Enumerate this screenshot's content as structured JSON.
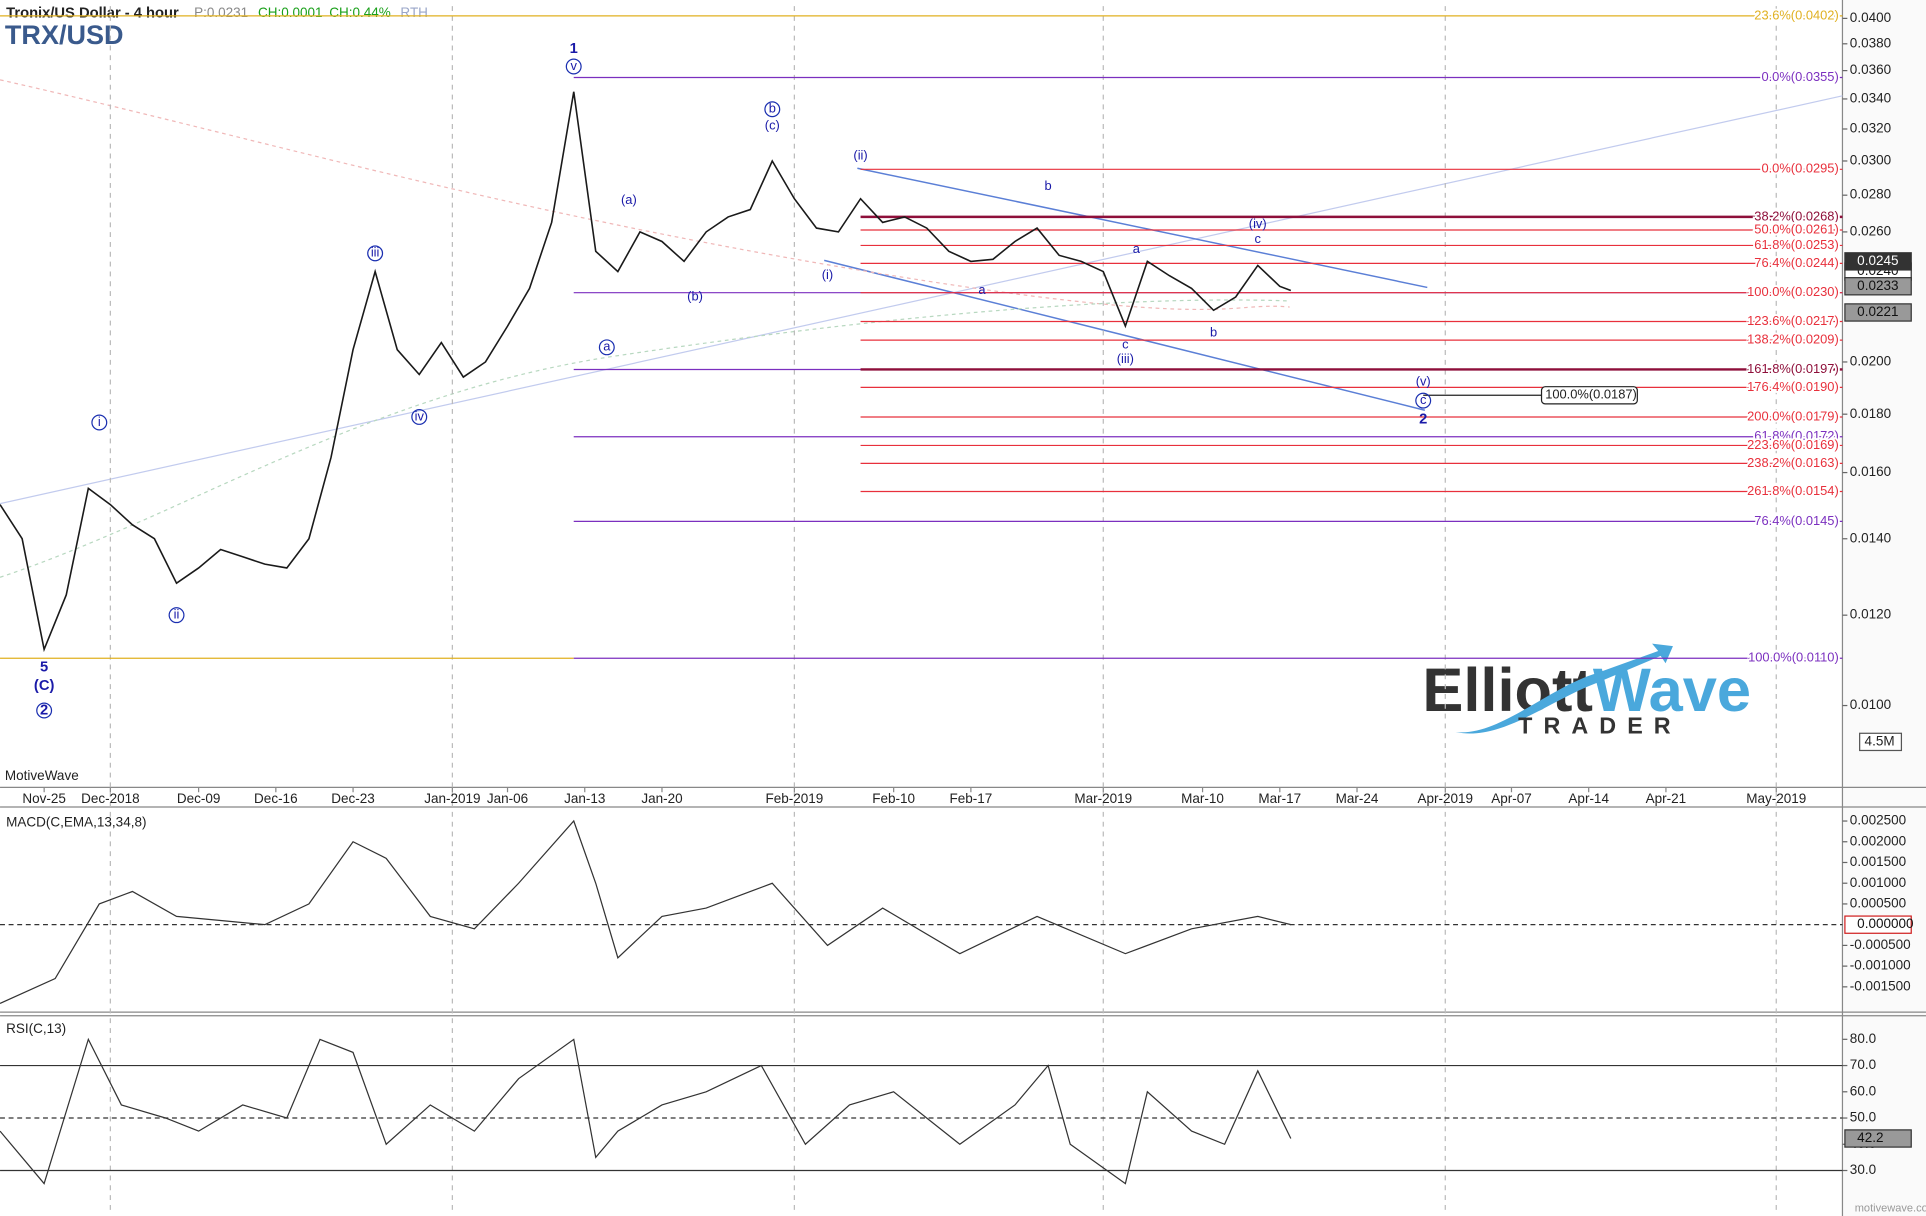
{
  "chart_data": [
    {
      "type": "line",
      "title": "Tronix/US Dollar - 4 hour",
      "symbol": "TRX/USD",
      "header_stats": [
        "P:0.0231",
        "CH:0.0001",
        "CH:0.44%",
        "RTH"
      ],
      "watermark": "MotiveWave",
      "volume_label": "4.5M",
      "log": true,
      "xlim": [
        "2018-11-21",
        "2019-05-07"
      ],
      "ylim": [
        0.0085,
        0.041
      ],
      "xticks": [
        {
          "value": "2018-11-25",
          "label": "Nov-25"
        },
        {
          "value": "2018-12-01",
          "label": "Dec-2018"
        },
        {
          "value": "2018-12-09",
          "label": "Dec-09"
        },
        {
          "value": "2018-12-16",
          "label": "Dec-16"
        },
        {
          "value": "2018-12-23",
          "label": "Dec-23"
        },
        {
          "value": "2019-01-01",
          "label": "Jan-2019"
        },
        {
          "value": "2019-01-06",
          "label": "Jan-06"
        },
        {
          "value": "2019-01-13",
          "label": "Jan-13"
        },
        {
          "value": "2019-01-20",
          "label": "Jan-20"
        },
        {
          "value": "2019-02-01",
          "label": "Feb-2019"
        },
        {
          "value": "2019-02-10",
          "label": "Feb-10"
        },
        {
          "value": "2019-02-17",
          "label": "Feb-17"
        },
        {
          "value": "2019-03-01",
          "label": "Mar-2019"
        },
        {
          "value": "2019-03-10",
          "label": "Mar-10"
        },
        {
          "value": "2019-03-17",
          "label": "Mar-17"
        },
        {
          "value": "2019-03-24",
          "label": "Mar-24"
        },
        {
          "value": "2019-04-01",
          "label": "Apr-2019"
        },
        {
          "value": "2019-04-07",
          "label": "Apr-07"
        },
        {
          "value": "2019-04-14",
          "label": "Apr-14"
        },
        {
          "value": "2019-04-21",
          "label": "Apr-21"
        },
        {
          "value": "2019-05-01",
          "label": "May-2019"
        }
      ],
      "yticks": [
        {
          "value": 0.01,
          "label": "0.0100"
        },
        {
          "value": 0.012,
          "label": "0.0120"
        },
        {
          "value": 0.014,
          "label": "0.0140"
        },
        {
          "value": 0.016,
          "label": "0.0160"
        },
        {
          "value": 0.018,
          "label": "0.0180"
        },
        {
          "value": 0.02,
          "label": "0.0200"
        },
        {
          "value": 0.026,
          "label": "0.0260"
        },
        {
          "value": 0.028,
          "label": "0.0280"
        },
        {
          "value": 0.03,
          "label": "0.0300"
        },
        {
          "value": 0.032,
          "label": "0.0320"
        },
        {
          "value": 0.034,
          "label": "0.0340"
        },
        {
          "value": 0.036,
          "label": "0.0360"
        },
        {
          "value": 0.038,
          "label": "0.0380"
        },
        {
          "value": 0.04,
          "label": "0.0400"
        }
      ],
      "series": [
        {
          "color": "#1a1a1a",
          "x": [
            "2018-11-21",
            "2018-11-23",
            "2018-11-25",
            "2018-11-27",
            "2018-11-29",
            "2018-12-01",
            "2018-12-03",
            "2018-12-05",
            "2018-12-07",
            "2018-12-09",
            "2018-12-11",
            "2018-12-13",
            "2018-12-15",
            "2018-12-17",
            "2018-12-19",
            "2018-12-21",
            "2018-12-23",
            "2018-12-25",
            "2018-12-27",
            "2018-12-29",
            "2018-12-31",
            "2019-01-02",
            "2019-01-04",
            "2019-01-06",
            "2019-01-08",
            "2019-01-10",
            "2019-01-12",
            "2019-01-14",
            "2019-01-16",
            "2019-01-18",
            "2019-01-20",
            "2019-01-22",
            "2019-01-24",
            "2019-01-26",
            "2019-01-28",
            "2019-01-30",
            "2019-02-01",
            "2019-02-03",
            "2019-02-05",
            "2019-02-07",
            "2019-02-09",
            "2019-02-11",
            "2019-02-13",
            "2019-02-15",
            "2019-02-17",
            "2019-02-19",
            "2019-02-21",
            "2019-02-23",
            "2019-02-25",
            "2019-02-27",
            "2019-03-01",
            "2019-03-03",
            "2019-03-05",
            "2019-03-07",
            "2019-03-09",
            "2019-03-11",
            "2019-03-13",
            "2019-03-15",
            "2019-03-17",
            "2019-03-18"
          ],
          "values": [
            0.015,
            0.014,
            0.0112,
            0.0125,
            0.0155,
            0.015,
            0.0144,
            0.014,
            0.0128,
            0.0132,
            0.0137,
            0.0135,
            0.0133,
            0.0132,
            0.014,
            0.0165,
            0.0205,
            0.024,
            0.0205,
            0.0195,
            0.0208,
            0.0194,
            0.02,
            0.0215,
            0.0232,
            0.0265,
            0.0345,
            0.025,
            0.024,
            0.026,
            0.0255,
            0.0245,
            0.026,
            0.0268,
            0.0272,
            0.03,
            0.0278,
            0.0262,
            0.026,
            0.0278,
            0.0265,
            0.0268,
            0.0262,
            0.025,
            0.0245,
            0.0246,
            0.0255,
            0.0262,
            0.0248,
            0.0245,
            0.024,
            0.0215,
            0.0245,
            0.0238,
            0.0232,
            0.0222,
            0.0228,
            0.0243,
            0.0233,
            0.0231
          ]
        }
      ],
      "fib_levels": [
        {
          "label": "23.6%(0.0402)",
          "value": 0.0402,
          "color": "#e0b020",
          "from": "2018-11-21"
        },
        {
          "value": 0.011,
          "color": "#e0b020",
          "from": "2018-11-21",
          "to": "2019-01-12"
        },
        {
          "label": "0.0%(0.0355)",
          "value": 0.0355,
          "color": "#7b2fbf",
          "from": "2019-01-12"
        },
        {
          "value": 0.023,
          "color": "#7b2fbf",
          "from": "2019-01-12"
        },
        {
          "value": 0.0197,
          "color": "#7b2fbf",
          "from": "2019-01-12"
        },
        {
          "label": "61.8%(0.0172)",
          "value": 0.0172,
          "color": "#7b2fbf",
          "from": "2019-01-12"
        },
        {
          "label": "76.4%(0.0145)",
          "value": 0.0145,
          "color": "#7b2fbf",
          "from": "2019-01-12"
        },
        {
          "label": "100.0%(0.0110)",
          "value": 0.011,
          "color": "#7b2fbf",
          "from": "2019-01-12"
        },
        {
          "label": "0.0%(0.0295)",
          "value": 0.0295,
          "color": "#e8303c",
          "from": "2019-02-07"
        },
        {
          "label": "38.2%(0.0268)",
          "value": 0.0268,
          "color": "#8e0f3a",
          "from": "2019-02-07",
          "width": 2
        },
        {
          "label": "50.0%(0.0261)",
          "value": 0.0261,
          "color": "#e8303c",
          "from": "2019-02-07"
        },
        {
          "label": "61.8%(0.0253)",
          "value": 0.0253,
          "color": "#e8303c",
          "from": "2019-02-07"
        },
        {
          "label": "76.4%(0.0244)",
          "value": 0.0244,
          "color": "#e8303c",
          "from": "2019-02-07"
        },
        {
          "label": "100.0%(0.0230)",
          "value": 0.023,
          "color": "#e8303c",
          "from": "2019-02-07"
        },
        {
          "label": "123.6%(0.0217)",
          "value": 0.0217,
          "color": "#e8303c",
          "from": "2019-02-07"
        },
        {
          "label": "138.2%(0.0209)",
          "value": 0.0209,
          "color": "#e8303c",
          "from": "2019-02-07"
        },
        {
          "label": "161.8%(0.0197)",
          "value": 0.0197,
          "color": "#8e0f3a",
          "from": "2019-02-07",
          "width": 2
        },
        {
          "label": "176.4%(0.0190)",
          "value": 0.019,
          "color": "#e8303c",
          "from": "2019-02-07"
        },
        {
          "label": "200.0%(0.0179)",
          "value": 0.0179,
          "color": "#e8303c",
          "from": "2019-02-07"
        },
        {
          "label": "223.6%(0.0169)",
          "value": 0.0169,
          "color": "#e8303c",
          "from": "2019-02-07"
        },
        {
          "label": "238.2%(0.0163)",
          "value": 0.0163,
          "color": "#e8303c",
          "from": "2019-02-07"
        },
        {
          "label": "261.8%(0.0154)",
          "value": 0.0154,
          "color": "#e8303c",
          "from": "2019-02-07"
        }
      ],
      "target": {
        "label": "100.0%(0.0187)",
        "value": 0.0187,
        "from": "2019-03-30"
      },
      "annotations": [
        {
          "text": "1",
          "x": "2019-01-12",
          "y": 0.0376,
          "bold": true
        },
        {
          "text": "v",
          "x": "2019-01-12",
          "y": 0.0363,
          "circle": true
        },
        {
          "text": "5",
          "x": "2018-11-25",
          "y": 0.0108,
          "bold": true
        },
        {
          "text": "(C)",
          "x": "2018-11-25",
          "y": 0.0104,
          "bold": true
        },
        {
          "text": "2",
          "x": "2018-11-25",
          "y": 0.0099,
          "circle": true,
          "bold": true
        },
        {
          "text": "i",
          "x": "2018-11-30",
          "y": 0.0177,
          "circle": true
        },
        {
          "text": "ii",
          "x": "2018-12-07",
          "y": 0.012,
          "circle": true
        },
        {
          "text": "iii",
          "x": "2018-12-25",
          "y": 0.0249,
          "circle": true
        },
        {
          "text": "iv",
          "x": "2018-12-29",
          "y": 0.0179,
          "circle": true
        },
        {
          "text": "a",
          "x": "2019-01-15",
          "y": 0.0206,
          "circle": true
        },
        {
          "text": "(a)",
          "x": "2019-01-17",
          "y": 0.0277
        },
        {
          "text": "(b)",
          "x": "2019-01-23",
          "y": 0.0228
        },
        {
          "text": "b",
          "x": "2019-01-30",
          "y": 0.0333,
          "circle": true
        },
        {
          "text": "(c)",
          "x": "2019-01-30",
          "y": 0.0322
        },
        {
          "text": "(i)",
          "x": "2019-02-04",
          "y": 0.0238
        },
        {
          "text": "(ii)",
          "x": "2019-02-07",
          "y": 0.0303
        },
        {
          "text": "a",
          "x": "2019-02-18",
          "y": 0.0231
        },
        {
          "text": "b",
          "x": "2019-02-24",
          "y": 0.0285
        },
        {
          "text": "c",
          "x": "2019-03-03",
          "y": 0.0207
        },
        {
          "text": "(iii)",
          "x": "2019-03-03",
          "y": 0.0201
        },
        {
          "text": "a",
          "x": "2019-03-04",
          "y": 0.0251
        },
        {
          "text": "b",
          "x": "2019-03-11",
          "y": 0.0212
        },
        {
          "text": "(iv)",
          "x": "2019-03-15",
          "y": 0.0264
        },
        {
          "text": "c",
          "x": "2019-03-15",
          "y": 0.0256
        },
        {
          "text": "(v)",
          "x": "2019-03-30",
          "y": 0.0192
        },
        {
          "text": "c",
          "x": "2019-03-30",
          "y": 0.0185,
          "circle": true
        },
        {
          "text": "2",
          "x": "2019-03-30",
          "y": 0.0178,
          "bold": true
        }
      ],
      "markers": [
        {
          "label": "0.0240",
          "value": 0.024
        },
        {
          "label": "0.0245",
          "value": 0.0245,
          "style": "dark"
        },
        {
          "label": "0.0233",
          "value": 0.0233,
          "style": "gray"
        },
        {
          "label": "0.0221",
          "value": 0.0221,
          "style": "gray"
        }
      ]
    },
    {
      "type": "line",
      "title": "MACD(C,EMA,13,34,8)",
      "ylim": [
        -0.00205,
        0.00275
      ],
      "yticks": [
        {
          "value": 0.0025,
          "label": "0.002500"
        },
        {
          "value": 0.002,
          "label": "0.002000"
        },
        {
          "value": 0.0015,
          "label": "0.001500"
        },
        {
          "value": 0.001,
          "label": "0.001000"
        },
        {
          "value": 0.0005,
          "label": "0.000500"
        },
        {
          "value": -0.0005,
          "label": "-0.000500"
        },
        {
          "value": -0.001,
          "label": "-0.001000"
        },
        {
          "value": -0.0015,
          "label": "-0.001500"
        }
      ],
      "dashed_levels": [
        0
      ],
      "series": [
        {
          "color": "#333333",
          "x": [
            "2018-11-21",
            "2018-11-26",
            "2018-11-30",
            "2018-12-03",
            "2018-12-07",
            "2018-12-11",
            "2018-12-15",
            "2018-12-19",
            "2018-12-23",
            "2018-12-26",
            "2018-12-30",
            "2019-01-03",
            "2019-01-07",
            "2019-01-12",
            "2019-01-14",
            "2019-01-16",
            "2019-01-20",
            "2019-01-24",
            "2019-01-30",
            "2019-02-04",
            "2019-02-09",
            "2019-02-16",
            "2019-02-23",
            "2019-03-03",
            "2019-03-09",
            "2019-03-15",
            "2019-03-18"
          ],
          "values": [
            -0.0019,
            -0.0013,
            0.0005,
            0.0008,
            0.0002,
            0.0001,
            0,
            0.0005,
            0.002,
            0.0016,
            0.0002,
            -0.0001,
            0.001,
            0.0025,
            0.001,
            -0.0008,
            0.0002,
            0.0004,
            0.001,
            -0.0005,
            0.0004,
            -0.0007,
            0.0002,
            -0.0007,
            -0.0001,
            0.0002,
            0
          ]
        }
      ],
      "markers": [
        {
          "label": "0.000000",
          "value": 0,
          "style": "red"
        }
      ]
    },
    {
      "type": "line",
      "title": "RSI(C,13)",
      "ylim": [
        15,
        88.5
      ],
      "yticks": [
        {
          "value": 80,
          "label": "80.0"
        },
        {
          "value": 70,
          "label": "70.0"
        },
        {
          "value": 60,
          "label": "60.0"
        },
        {
          "value": 50,
          "label": "50.0"
        },
        {
          "value": 40,
          "label": "40.0"
        },
        {
          "value": 30,
          "label": "30.0"
        }
      ],
      "levels": [
        70,
        30
      ],
      "dashed_levels": [
        50
      ],
      "series": [
        {
          "color": "#333333",
          "x": [
            "2018-11-21",
            "2018-11-25",
            "2018-11-29",
            "2018-12-02",
            "2018-12-06",
            "2018-12-09",
            "2018-12-13",
            "2018-12-17",
            "2018-12-20",
            "2018-12-23",
            "2018-12-26",
            "2018-12-30",
            "2019-01-03",
            "2019-01-07",
            "2019-01-12",
            "2019-01-14",
            "2019-01-16",
            "2019-01-20",
            "2019-01-24",
            "2019-01-29",
            "2019-02-02",
            "2019-02-06",
            "2019-02-10",
            "2019-02-16",
            "2019-02-21",
            "2019-02-24",
            "2019-02-26",
            "2019-03-03",
            "2019-03-05",
            "2019-03-09",
            "2019-03-12",
            "2019-03-15",
            "2019-03-18"
          ],
          "values": [
            45,
            25,
            80,
            55,
            50,
            45,
            55,
            50,
            80,
            75,
            40,
            55,
            45,
            65,
            80,
            35,
            45,
            55,
            60,
            70,
            40,
            55,
            60,
            40,
            55,
            70,
            40,
            25,
            60,
            45,
            40,
            68,
            42.2
          ]
        }
      ],
      "markers": [
        {
          "label": "42.2",
          "value": 42.2,
          "style": "gray"
        }
      ]
    }
  ],
  "logo": {
    "parts": [
      "Elliott",
      "Wave"
    ],
    "tagline": "TRADER"
  },
  "footer": "motivewave.com"
}
